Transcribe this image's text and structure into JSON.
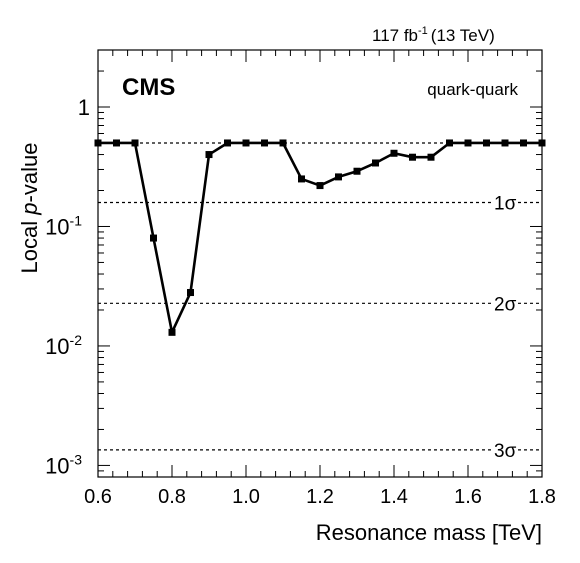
{
  "chart_data": {
    "type": "line",
    "lumi_label": "117 fb",
    "lumi_exponent": "-1",
    "energy_label": "(13 TeV)",
    "experiment": "CMS",
    "channel": "quark-quark",
    "xlabel": "Resonance mass [TeV]",
    "ylabel_prefix": "Local ",
    "ylabel_italic": "p",
    "ylabel_suffix": "-value",
    "xlim": [
      0.6,
      1.8
    ],
    "ylim": [
      0.0008,
      3
    ],
    "yscale": "log",
    "xticks": [
      "0.6",
      "0.8",
      "1.0",
      "1.2",
      "1.4",
      "1.6",
      "1.8"
    ],
    "yticks": [
      {
        "value": 1,
        "label": "1",
        "exp": ""
      },
      {
        "value": 0.1,
        "label": "10",
        "exp": "-1"
      },
      {
        "value": 0.01,
        "label": "10",
        "exp": "-2"
      },
      {
        "value": 0.001,
        "label": "10",
        "exp": "-3"
      }
    ],
    "sigma_lines": [
      {
        "label": "1σ",
        "value": 0.1587
      },
      {
        "label": "2σ",
        "value": 0.02275
      },
      {
        "label": "3σ",
        "value": 0.00135
      }
    ],
    "reference_line": 0.5,
    "series": [
      {
        "x": [
          0.6,
          0.65,
          0.7,
          0.75,
          0.8,
          0.85,
          0.9,
          0.95,
          1.0,
          1.05,
          1.1,
          1.15,
          1.2,
          1.25,
          1.3,
          1.35,
          1.4,
          1.45,
          1.5,
          1.55,
          1.6,
          1.65,
          1.7,
          1.75,
          1.8
        ],
        "values": [
          0.5,
          0.5,
          0.5,
          0.08,
          0.013,
          0.028,
          0.4,
          0.5,
          0.5,
          0.5,
          0.5,
          0.25,
          0.22,
          0.26,
          0.29,
          0.34,
          0.41,
          0.38,
          0.38,
          0.5,
          0.5,
          0.5,
          0.5,
          0.5,
          0.5
        ]
      }
    ]
  }
}
